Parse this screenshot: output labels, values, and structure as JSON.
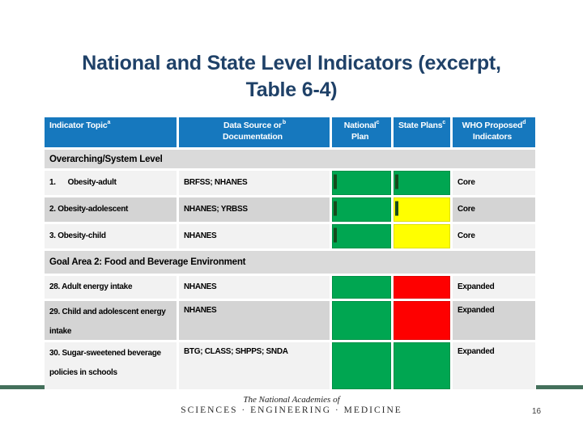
{
  "slide": {
    "title": "National and State Level Indicators (excerpt,\nTable 6-4)",
    "page_number": "16",
    "footer_logo": {
      "line1": "The National Academies of",
      "line2": "SCIENCES · ENGINEERING · MEDICINE"
    }
  },
  "colors": {
    "header_bg": "#1678BE",
    "title_text": "#1F4168",
    "green": "#00A651",
    "yellow": "#FFFF00",
    "red": "#FE0000",
    "tick_mark": "#174A1D",
    "section_bg": "#DADADA",
    "row_light": "#F2F2F2",
    "row_dark": "#D4D4D4",
    "footer_rule": "#44705B"
  },
  "table": {
    "headers": [
      {
        "label": "Indicator Topic",
        "sup": "a"
      },
      {
        "label": "Data Source or\nDocumentation",
        "sup": "b"
      },
      {
        "label": "National\nPlan",
        "sup": "c"
      },
      {
        "label": "State Plans",
        "sup": "c"
      },
      {
        "label": "WHO Proposed\nIndicators",
        "sup": "d"
      }
    ],
    "section1": {
      "label": "Overarching/System Level"
    },
    "section2": {
      "label": "Goal Area 2: Food and Beverage Environment"
    },
    "rows": [
      {
        "topic": "1.      Obesity-adult",
        "source": "BRFSS; NHANES",
        "national_plan": "green",
        "state_plans": "green",
        "who": "Core"
      },
      {
        "topic": "2. Obesity-adolescent",
        "source": "NHANES; YRBSS",
        "national_plan": "green",
        "state_plans": "yellow",
        "who": "Core"
      },
      {
        "topic": "3. Obesity-child",
        "source": "NHANES",
        "national_plan": "green",
        "state_plans": "yellow",
        "who": "Core"
      },
      {
        "topic": "28. Adult energy intake",
        "source": "NHANES",
        "national_plan": "green",
        "state_plans": "red",
        "who": "Expanded"
      },
      {
        "topic": "29. Child and adolescent energy\nintake",
        "source": "NHANES",
        "national_plan": "green",
        "state_plans": "red",
        "who": "Expanded"
      },
      {
        "topic": "30. Sugar-sweetened beverage\npolicies in schools",
        "source": "BTG; CLASS; SHPPS; SNDA",
        "national_plan": "green",
        "state_plans": "green",
        "who": "Expanded"
      }
    ]
  }
}
